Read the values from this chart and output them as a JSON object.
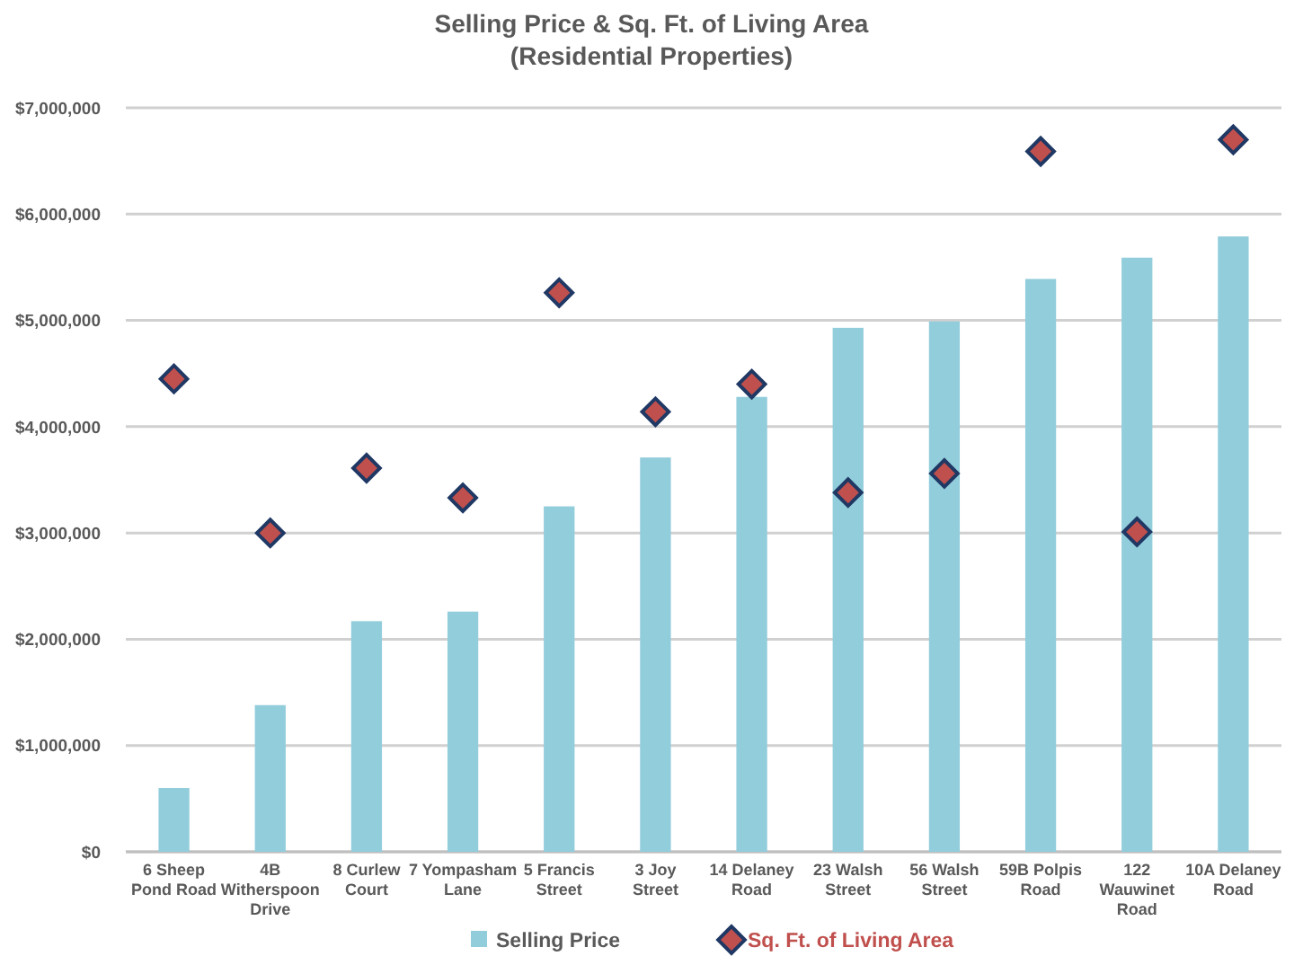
{
  "chart_data": {
    "type": "bar",
    "title": "Selling Price & Sq. Ft. of Living Area\n(Residential Properties)",
    "categories": [
      "6 Sheep Pond Road",
      "4B Witherspoon Drive",
      "8 Curlew Court",
      "7 Yompasham Lane",
      "5 Francis Street",
      "3 Joy Street",
      "14 Delaney Road",
      "23 Walsh Street",
      "56 Walsh Street",
      "59B Polpis Road",
      "122 Wauwinet Road",
      "10A Delaney Road"
    ],
    "series": [
      {
        "name": "Selling Price",
        "color": "#92cddc",
        "values": [
          600000,
          1380000,
          2170000,
          2260000,
          3250000,
          3710000,
          4280000,
          4930000,
          4990000,
          5390000,
          5590000,
          5790000
        ]
      },
      {
        "name": "Sq. Ft. of Living Area",
        "type": "scatter",
        "color": "#c0504d",
        "marker": "diamond",
        "values": [
          4450000,
          3000000,
          3610000,
          3330000,
          5260000,
          4140000,
          4400000,
          3380000,
          3560000,
          6590000,
          3010000,
          6700000
        ]
      }
    ],
    "ylim": [
      0,
      7000000
    ],
    "yticks": [
      {
        "value": 0,
        "label": "$0"
      },
      {
        "value": 1000000,
        "label": "$1,000,000"
      },
      {
        "value": 2000000,
        "label": "$2,000,000"
      },
      {
        "value": 3000000,
        "label": "$3,000,000"
      },
      {
        "value": 4000000,
        "label": "$4,000,000"
      },
      {
        "value": 5000000,
        "label": "$5,000,000"
      },
      {
        "value": 6000000,
        "label": "$6,000,000"
      },
      {
        "value": 7000000,
        "label": "$7,000,000"
      }
    ],
    "grid": "y",
    "legend": "bottom"
  }
}
